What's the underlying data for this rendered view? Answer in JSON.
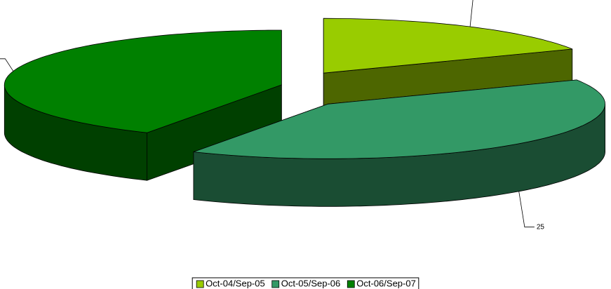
{
  "chart_data": {
    "type": "pie3d",
    "categories": [
      "Oct-04/Sep-05",
      "Oct-05/Sep-06",
      "Oct-06/Sep-07"
    ],
    "values": [
      11,
      25,
      26
    ],
    "colors": [
      "#99cc00",
      "#339966",
      "#008000"
    ],
    "legend": "bottom"
  }
}
